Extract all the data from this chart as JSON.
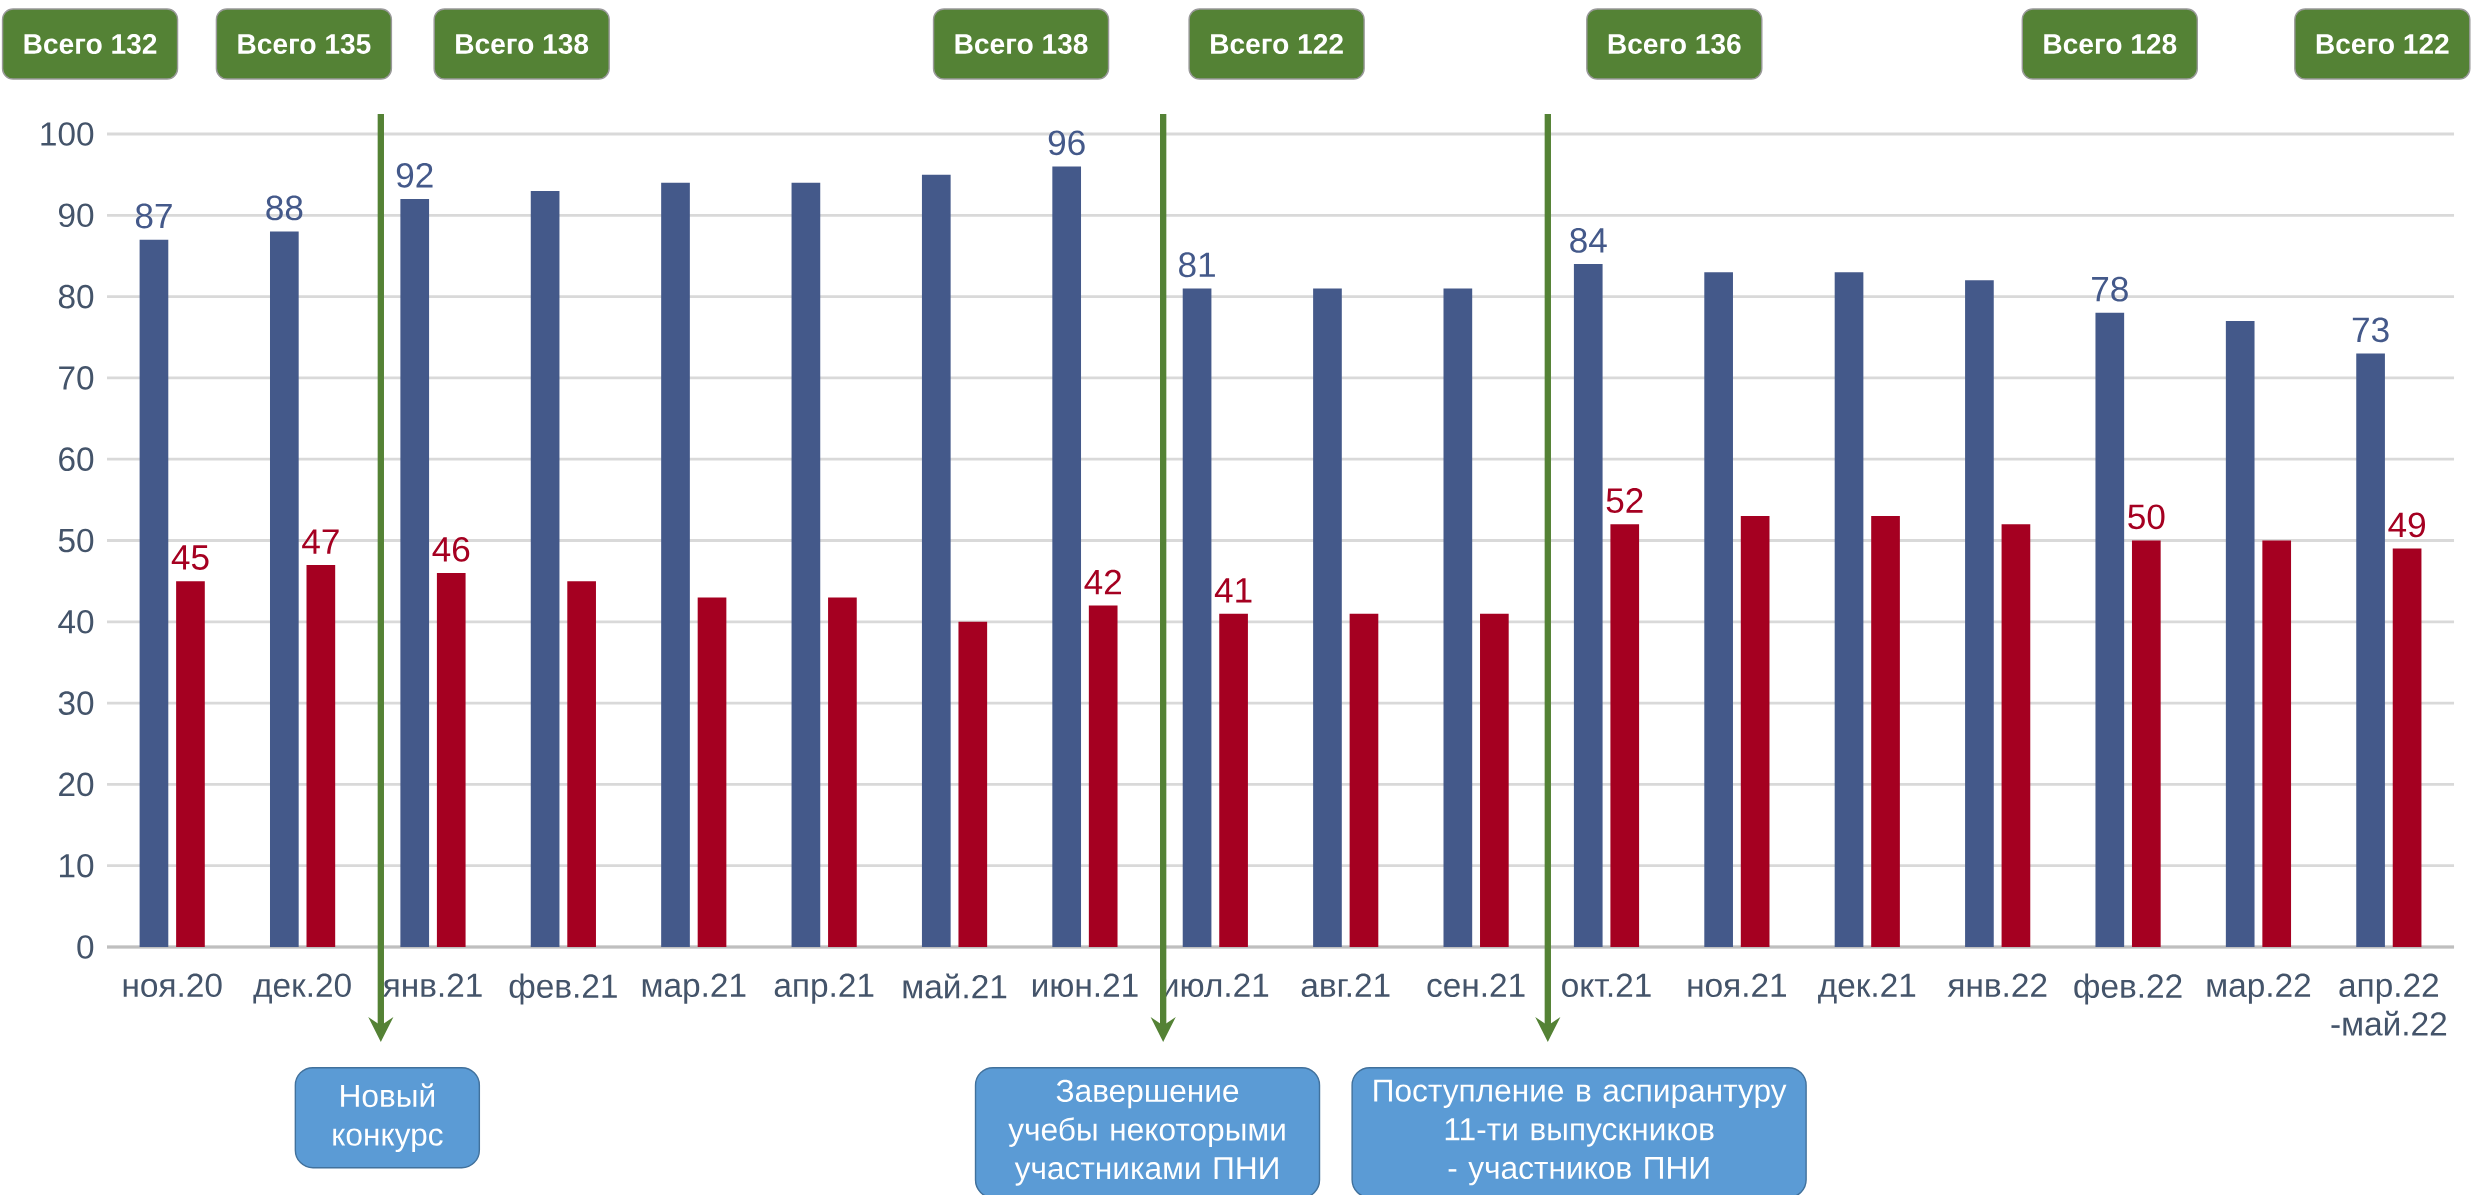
{
  "chart_data": {
    "type": "bar",
    "categories": [
      "ноя.20",
      "дек.20",
      "янв.21",
      "фев.21",
      "мар.21",
      "апр.21",
      "май.21",
      "июн.21",
      "июл.21",
      "авг.21",
      "сен.21",
      "окт.21",
      "ноя.21",
      "дек.21",
      "янв.22",
      "фев.22",
      "мар.22",
      "апр.22 -май.22"
    ],
    "series": [
      {
        "color": "#44598a",
        "values": [
          87,
          88,
          92,
          93,
          94,
          94,
          95,
          96,
          81,
          81,
          81,
          84,
          83,
          83,
          82,
          78,
          77,
          73
        ],
        "value_labels": [
          "87",
          "88",
          "92",
          null,
          null,
          null,
          null,
          "96",
          "81",
          null,
          null,
          "84",
          null,
          null,
          null,
          "78",
          null,
          "73"
        ]
      },
      {
        "color": "#a50021",
        "values": [
          45,
          47,
          46,
          45,
          43,
          43,
          40,
          42,
          41,
          41,
          41,
          52,
          53,
          53,
          52,
          50,
          50,
          49
        ],
        "value_labels": [
          "45",
          "47",
          "46",
          null,
          null,
          null,
          null,
          "42",
          "41",
          null,
          null,
          "52",
          null,
          null,
          null,
          "50",
          null,
          "49"
        ]
      }
    ],
    "annotations": [
      "Всего 132",
      "Всего 135",
      "Всего 138",
      "Всего 138",
      "Всего 122",
      "Всего 136",
      "Всего 128",
      "Всего 122",
      "Новый конкурс",
      "Завершение учебы некоторыми участниками ПНИ",
      "Поступление в аспирантуру 11-ти выпускников - участников ПНИ"
    ],
    "ylim": [
      0,
      100
    ],
    "yticks": [
      0,
      10,
      20,
      30,
      40,
      50,
      60,
      70,
      80,
      90,
      100
    ],
    "grid": "y"
  }
}
